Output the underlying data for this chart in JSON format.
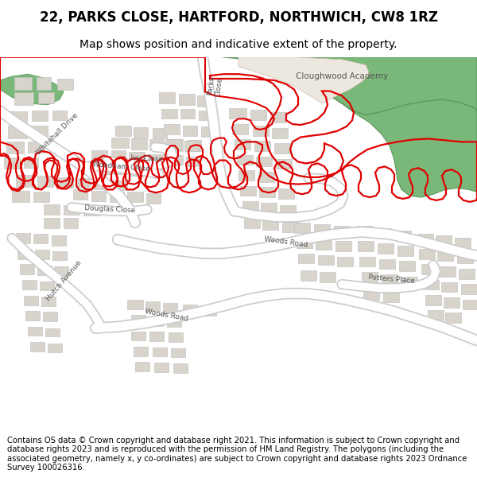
{
  "title": "22, PARKS CLOSE, HARTFORD, NORTHWICH, CW8 1RZ",
  "subtitle": "Map shows position and indicative extent of the property.",
  "copyright_text": "Contains OS data © Crown copyright and database right 2021. This information is subject to Crown copyright and database rights 2023 and is reproduced with the permission of HM Land Registry. The polygons (including the associated geometry, namely x, y co-ordinates) are subject to Crown copyright and database rights 2023 Ordnance Survey 100026316.",
  "map_bg": "#f5f3f0",
  "building_color": "#d8d4cc",
  "building_edge": "#bbbbbb",
  "green_color": "#7ab87a",
  "green_edge": "#5a985a",
  "beige_color": "#ede8df",
  "road_color": "#ffffff",
  "road_edge": "#cccccc",
  "water_color": "#aad4e8",
  "red_color": "#e00000",
  "title_fontsize": 12,
  "subtitle_fontsize": 10,
  "copyright_fontsize": 7.2
}
